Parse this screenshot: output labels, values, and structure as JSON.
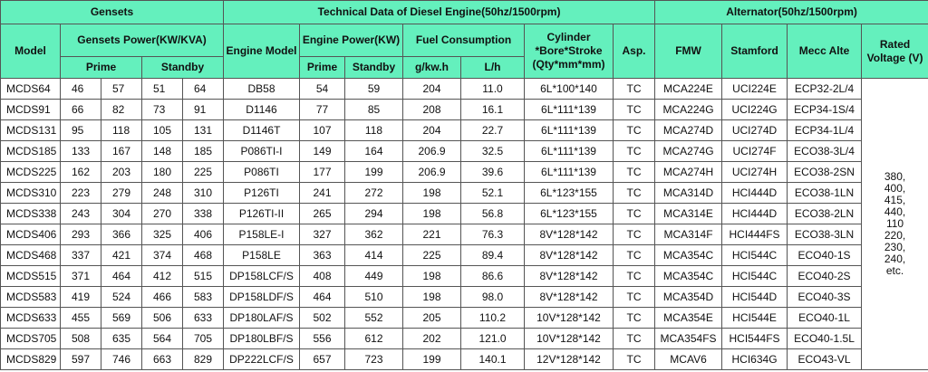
{
  "header": {
    "groups": [
      "Gensets",
      "Technical Data of Diesel Engine(50hz/1500rpm)",
      "Alternator(50hz/1500rpm)"
    ],
    "model": "Model",
    "gensets_power": "Gensets Power(KW/KVA)",
    "prime": "Prime",
    "standby": "Standby",
    "engine_model": "Engine Model",
    "engine_power": "Engine Power(KW)",
    "fuel": "Fuel Consumption",
    "cylinder": "Cylinder *Bore*Stroke (Qty*mm*mm)",
    "asp": "Asp.",
    "fmw": "FMW",
    "stamford": "Stamford",
    "mecc": "Mecc Alte",
    "rated_voltage": "Rated Voltage (V)",
    "engine_prime": "Prime",
    "engine_standby": "Standby",
    "gkwh": "g/kw.h",
    "lh": "L/h"
  },
  "table": {
    "rows": [
      [
        "MCDS64",
        "46",
        "57",
        "51",
        "64",
        "DB58",
        "54",
        "59",
        "204",
        "11.0",
        "6L*100*140",
        "TC",
        "MCA224E",
        "UCI224E",
        "ECP32-2L/4"
      ],
      [
        "MCDS91",
        "66",
        "82",
        "73",
        "91",
        "D1146",
        "77",
        "85",
        "208",
        "16.1",
        "6L*111*139",
        "TC",
        "MCA224G",
        "UCI224G",
        "ECP34-1S/4"
      ],
      [
        "MCDS131",
        "95",
        "118",
        "105",
        "131",
        "D1146T",
        "107",
        "118",
        "204",
        "22.7",
        "6L*111*139",
        "TC",
        "MCA274D",
        "UCI274D",
        "ECP34-1L/4"
      ],
      [
        "MCDS185",
        "133",
        "167",
        "148",
        "185",
        "P086TI-I",
        "149",
        "164",
        "206.9",
        "32.5",
        "6L*111*139",
        "TC",
        "MCA274G",
        "UCI274F",
        "ECO38-3L/4"
      ],
      [
        "MCDS225",
        "162",
        "203",
        "180",
        "225",
        "P086TI",
        "177",
        "199",
        "206.9",
        "39.6",
        "6L*111*139",
        "TC",
        "MCA274H",
        "UCI274H",
        "ECO38-2SN"
      ],
      [
        "MCDS310",
        "223",
        "279",
        "248",
        "310",
        "P126TI",
        "241",
        "272",
        "198",
        "52.1",
        "6L*123*155",
        "TC",
        "MCA314D",
        "HCI444D",
        "ECO38-1LN"
      ],
      [
        "MCDS338",
        "243",
        "304",
        "270",
        "338",
        "P126TI-II",
        "265",
        "294",
        "198",
        "56.8",
        "6L*123*155",
        "TC",
        "MCA314E",
        "HCI444D",
        "ECO38-2LN"
      ],
      [
        "MCDS406",
        "293",
        "366",
        "325",
        "406",
        "P158LE-I",
        "327",
        "362",
        "221",
        "76.3",
        "8V*128*142",
        "TC",
        "MCA314F",
        "HCI444FS",
        "ECO38-3LN"
      ],
      [
        "MCDS468",
        "337",
        "421",
        "374",
        "468",
        "P158LE",
        "363",
        "414",
        "225",
        "89.4",
        "8V*128*142",
        "TC",
        "MCA354C",
        "HCI544C",
        "ECO40-1S"
      ],
      [
        "MCDS515",
        "371",
        "464",
        "412",
        "515",
        "DP158LCF/S",
        "408",
        "449",
        "198",
        "86.6",
        "8V*128*142",
        "TC",
        "MCA354C",
        "HCI544C",
        "ECO40-2S"
      ],
      [
        "MCDS583",
        "419",
        "524",
        "466",
        "583",
        "DP158LDF/S",
        "464",
        "510",
        "198",
        "98.0",
        "8V*128*142",
        "TC",
        "MCA354D",
        "HCI544D",
        "ECO40-3S"
      ],
      [
        "MCDS633",
        "455",
        "569",
        "506",
        "633",
        "DP180LAF/S",
        "502",
        "552",
        "205",
        "110.2",
        "10V*128*142",
        "TC",
        "MCA354E",
        "HCI544E",
        "ECO40-1L"
      ],
      [
        "MCDS705",
        "508",
        "635",
        "564",
        "705",
        "DP180LBF/S",
        "556",
        "612",
        "202",
        "121.0",
        "10V*128*142",
        "TC",
        "MCA354FS",
        "HCI544FS",
        "ECO40-1.5L"
      ],
      [
        "MCDS829",
        "597",
        "746",
        "663",
        "829",
        "DP222LCF/S",
        "657",
        "723",
        "199",
        "140.1",
        "12V*128*142",
        "TC",
        "MCAV6",
        "HCI634G",
        "ECO43-VL"
      ]
    ],
    "rated_voltage": [
      "380,",
      "400,",
      "415,",
      "440,",
      "110",
      "220,",
      "230,",
      "240,",
      "etc."
    ]
  }
}
